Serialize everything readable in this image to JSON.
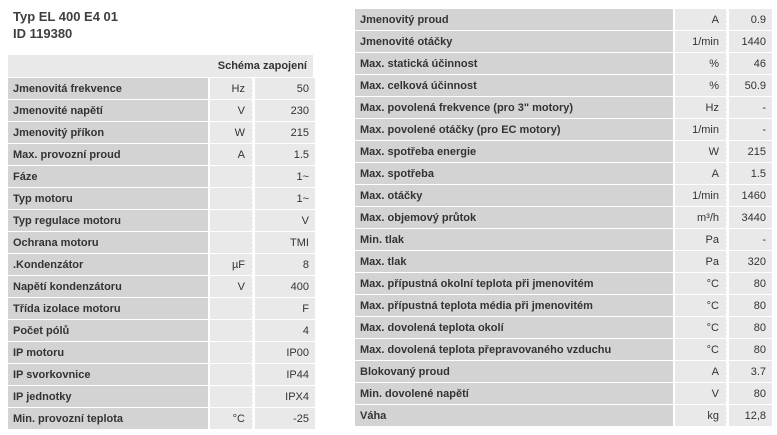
{
  "colors": {
    "label_bg": "#d3d3d3",
    "cell_bg": "#e9e9e9",
    "text": "#333333",
    "separator": "#ffffff",
    "page_bg": "#ffffff"
  },
  "title": {
    "line1": "Typ EL 400 E4 01",
    "line2": "ID 119380"
  },
  "left_table": {
    "header": "Schéma zapojení",
    "rows": [
      {
        "label": "Jmenovitá frekvence",
        "unit": "Hz",
        "value": "50"
      },
      {
        "label": "Jmenovité napětí",
        "unit": "V",
        "value": "230"
      },
      {
        "label": "Jmenovitý příkon",
        "unit": "W",
        "value": "215"
      },
      {
        "label": "Max. provozní proud",
        "unit": "A",
        "value": "1.5"
      },
      {
        "label": "Fáze",
        "unit": "",
        "value": "1~"
      },
      {
        "label": "Typ motoru",
        "unit": "",
        "value": "1~"
      },
      {
        "label": "Typ regulace motoru",
        "unit": "",
        "value": "V"
      },
      {
        "label": "Ochrana motoru",
        "unit": "",
        "value": "TMI"
      },
      {
        "label": ".Kondenzátor",
        "unit": "µF",
        "value": "8"
      },
      {
        "label": "Napětí kondenzátoru",
        "unit": "V",
        "value": "400"
      },
      {
        "label": "Třída izolace motoru",
        "unit": "",
        "value": "F"
      },
      {
        "label": "Počet pólů",
        "unit": "",
        "value": "4"
      },
      {
        "label": "IP motoru",
        "unit": "",
        "value": "IP00"
      },
      {
        "label": "IP svorkovnice",
        "unit": "",
        "value": "IP44"
      },
      {
        "label": "IP jednotky",
        "unit": "",
        "value": "IPX4"
      },
      {
        "label": "Min. provozní teplota",
        "unit": "°C",
        "value": "-25"
      }
    ]
  },
  "right_table": {
    "rows": [
      {
        "label": "Jmenovitý proud",
        "unit": "A",
        "value": "0.9"
      },
      {
        "label": "Jmenovité otáčky",
        "unit": "1/min",
        "value": "1440"
      },
      {
        "label": "Max. statická účinnost",
        "unit": "%",
        "value": "46"
      },
      {
        "label": "Max. celková účinnost",
        "unit": "%",
        "value": "50.9"
      },
      {
        "label": "Max. povolená frekvence (pro 3\" motory)",
        "unit": "Hz",
        "value": "-"
      },
      {
        "label": "Max. povolené otáčky (pro EC motory)",
        "unit": "1/min",
        "value": "-"
      },
      {
        "label": "Max. spotřeba energie",
        "unit": "W",
        "value": "215"
      },
      {
        "label": "Max. spotřeba",
        "unit": "A",
        "value": "1.5"
      },
      {
        "label": "Max. otáčky",
        "unit": "1/min",
        "value": "1460"
      },
      {
        "label": "Max. objemový průtok",
        "unit": "m³/h",
        "value": "3440"
      },
      {
        "label": "Min. tlak",
        "unit": "Pa",
        "value": "-"
      },
      {
        "label": "Max. tlak",
        "unit": "Pa",
        "value": "320"
      },
      {
        "label": "Max. přípustná okolní teplota při jmenovitém",
        "unit": "°C",
        "value": "80"
      },
      {
        "label": "Max. přípustná teplota média při jmenovitém",
        "unit": "°C",
        "value": "80"
      },
      {
        "label": "Max. dovolená teplota okolí",
        "unit": "°C",
        "value": "80"
      },
      {
        "label": "Max. dovolená teplota přepravovaného vzduchu",
        "unit": "°C",
        "value": "80"
      },
      {
        "label": "Blokovaný proud",
        "unit": "A",
        "value": "3.7"
      },
      {
        "label": "Min. dovolené napětí",
        "unit": "V",
        "value": "80"
      },
      {
        "label": "Váha",
        "unit": "kg",
        "value": "12,8"
      }
    ]
  }
}
